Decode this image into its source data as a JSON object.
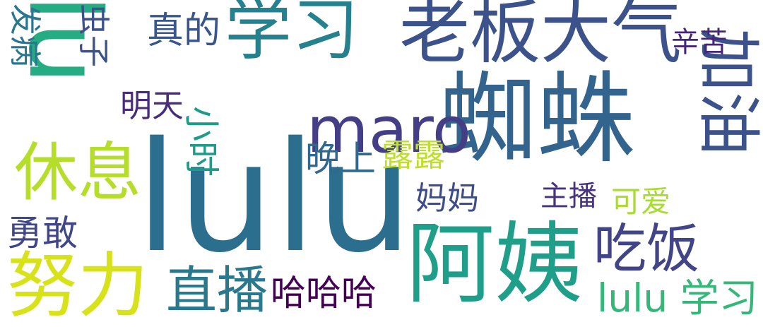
{
  "words": [
    {
      "text": "lulu",
      "color": "#2c6e8e"
    },
    {
      "text": "蜘蛛",
      "color": "#32648e"
    },
    {
      "text": "阿姨",
      "color": "#1f9e89"
    },
    {
      "text": "学习",
      "color": "#26818e"
    },
    {
      "text": "老板大气",
      "color": "#3b528b"
    },
    {
      "text": "maro",
      "color": "#433e85"
    },
    {
      "text": "lu",
      "color": "#25ac82"
    },
    {
      "text": "努力",
      "color": "#d8e219"
    },
    {
      "text": "休息",
      "color": "#b5de2b"
    },
    {
      "text": "加油",
      "color": "#3b528b"
    },
    {
      "text": "直播",
      "color": "#2a788e"
    },
    {
      "text": "吃饭",
      "color": "#414487"
    },
    {
      "text": "lulu 学习",
      "color": "#35b779"
    },
    {
      "text": "哈哈哈",
      "color": "#440154"
    },
    {
      "text": "真的",
      "color": "#39568c"
    },
    {
      "text": "露露",
      "color": "#bddf26"
    },
    {
      "text": "勇敢",
      "color": "#3f4788"
    },
    {
      "text": "妈妈",
      "color": "#3e4c8a"
    },
    {
      "text": "主播",
      "color": "#46327e"
    },
    {
      "text": "可爱",
      "color": "#a8db34"
    },
    {
      "text": "辛苦",
      "color": "#482677"
    },
    {
      "text": "发病",
      "color": "#2a768e"
    },
    {
      "text": "小时",
      "color": "#1e9b8a"
    },
    {
      "text": "明天",
      "color": "#472d7b"
    },
    {
      "text": "晚上",
      "color": "#31688e"
    },
    {
      "text": "虫子",
      "color": "#3b528b"
    }
  ]
}
